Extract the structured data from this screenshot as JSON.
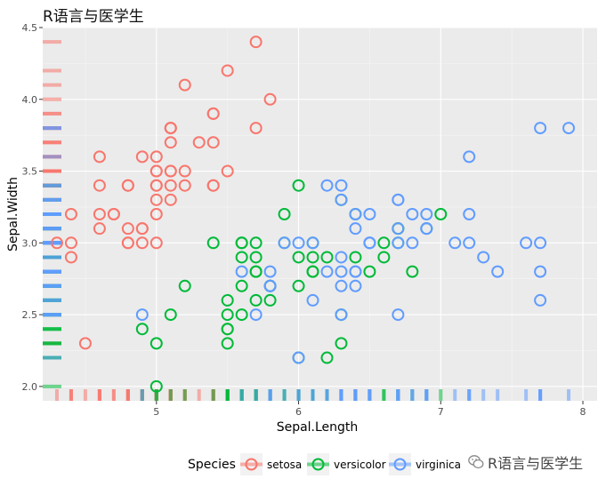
{
  "title": "R语言与医学生",
  "watermark": "R语言与医学生",
  "chart_data": {
    "type": "scatter",
    "title": "R语言与医学生",
    "xlabel": "Sepal.Length",
    "ylabel": "Sepal.Width",
    "xlim": [
      4.2,
      8.1
    ],
    "ylim": [
      1.9,
      4.5
    ],
    "xticks": [
      5,
      6,
      7,
      8
    ],
    "yticks": [
      2.0,
      2.5,
      3.0,
      3.5,
      4.0,
      4.5
    ],
    "xtick_labels": [
      "5",
      "6",
      "7",
      "8"
    ],
    "ytick_labels": [
      "2.0",
      "2.5",
      "3.0",
      "3.5",
      "4.0",
      "4.5"
    ],
    "grid": true,
    "rug": true,
    "legend": {
      "title": "Species",
      "position": "bottom"
    },
    "series": [
      {
        "name": "setosa",
        "color": "#F8766D",
        "points": [
          [
            5.1,
            3.5
          ],
          [
            4.9,
            3.0
          ],
          [
            4.7,
            3.2
          ],
          [
            4.6,
            3.1
          ],
          [
            5.0,
            3.6
          ],
          [
            5.4,
            3.9
          ],
          [
            4.6,
            3.4
          ],
          [
            5.0,
            3.4
          ],
          [
            4.4,
            2.9
          ],
          [
            4.9,
            3.1
          ],
          [
            5.4,
            3.7
          ],
          [
            4.8,
            3.4
          ],
          [
            4.8,
            3.0
          ],
          [
            4.3,
            3.0
          ],
          [
            5.8,
            4.0
          ],
          [
            5.7,
            4.4
          ],
          [
            5.4,
            3.9
          ],
          [
            5.1,
            3.5
          ],
          [
            5.7,
            3.8
          ],
          [
            5.1,
            3.8
          ],
          [
            5.4,
            3.4
          ],
          [
            5.1,
            3.7
          ],
          [
            4.6,
            3.6
          ],
          [
            5.1,
            3.3
          ],
          [
            4.8,
            3.4
          ],
          [
            5.0,
            3.0
          ],
          [
            5.0,
            3.4
          ],
          [
            5.2,
            3.5
          ],
          [
            5.2,
            3.4
          ],
          [
            4.7,
            3.2
          ],
          [
            4.8,
            3.1
          ],
          [
            5.4,
            3.4
          ],
          [
            5.2,
            4.1
          ],
          [
            5.5,
            4.2
          ],
          [
            4.9,
            3.1
          ],
          [
            5.0,
            3.2
          ],
          [
            5.5,
            3.5
          ],
          [
            4.9,
            3.6
          ],
          [
            4.4,
            3.0
          ],
          [
            5.1,
            3.4
          ],
          [
            5.0,
            3.5
          ],
          [
            4.5,
            2.3
          ],
          [
            4.4,
            3.2
          ],
          [
            5.0,
            3.5
          ],
          [
            5.1,
            3.8
          ],
          [
            4.8,
            3.0
          ],
          [
            5.1,
            3.8
          ],
          [
            4.6,
            3.2
          ],
          [
            5.3,
            3.7
          ],
          [
            5.0,
            3.3
          ]
        ]
      },
      {
        "name": "versicolor",
        "color": "#00BA38",
        "points": [
          [
            7.0,
            3.2
          ],
          [
            6.4,
            3.2
          ],
          [
            6.9,
            3.1
          ],
          [
            5.5,
            2.3
          ],
          [
            6.5,
            2.8
          ],
          [
            5.7,
            2.8
          ],
          [
            6.3,
            3.3
          ],
          [
            4.9,
            2.4
          ],
          [
            6.6,
            2.9
          ],
          [
            5.2,
            2.7
          ],
          [
            5.0,
            2.0
          ],
          [
            5.9,
            3.0
          ],
          [
            6.0,
            2.2
          ],
          [
            6.1,
            2.9
          ],
          [
            5.6,
            2.9
          ],
          [
            6.7,
            3.1
          ],
          [
            5.6,
            3.0
          ],
          [
            5.8,
            2.7
          ],
          [
            6.2,
            2.2
          ],
          [
            5.6,
            2.5
          ],
          [
            5.9,
            3.2
          ],
          [
            6.1,
            2.8
          ],
          [
            6.3,
            2.5
          ],
          [
            6.1,
            2.8
          ],
          [
            6.4,
            2.9
          ],
          [
            6.6,
            3.0
          ],
          [
            6.8,
            2.8
          ],
          [
            6.7,
            3.0
          ],
          [
            6.0,
            2.9
          ],
          [
            5.7,
            2.6
          ],
          [
            5.5,
            2.4
          ],
          [
            5.5,
            2.4
          ],
          [
            5.8,
            2.7
          ],
          [
            6.0,
            2.7
          ],
          [
            5.4,
            3.0
          ],
          [
            6.0,
            3.4
          ],
          [
            6.7,
            3.1
          ],
          [
            6.3,
            2.3
          ],
          [
            5.6,
            3.0
          ],
          [
            5.5,
            2.5
          ],
          [
            5.5,
            2.6
          ],
          [
            6.1,
            3.0
          ],
          [
            5.8,
            2.6
          ],
          [
            5.0,
            2.3
          ],
          [
            5.6,
            2.7
          ],
          [
            5.7,
            3.0
          ],
          [
            5.7,
            2.9
          ],
          [
            6.2,
            2.9
          ],
          [
            5.1,
            2.5
          ],
          [
            5.7,
            2.8
          ]
        ]
      },
      {
        "name": "virginica",
        "color": "#619CFF",
        "points": [
          [
            6.3,
            3.3
          ],
          [
            5.8,
            2.7
          ],
          [
            7.1,
            3.0
          ],
          [
            6.3,
            2.9
          ],
          [
            6.5,
            3.0
          ],
          [
            7.6,
            3.0
          ],
          [
            4.9,
            2.5
          ],
          [
            7.3,
            2.9
          ],
          [
            6.7,
            2.5
          ],
          [
            7.2,
            3.6
          ],
          [
            6.5,
            3.2
          ],
          [
            6.4,
            2.7
          ],
          [
            6.8,
            3.0
          ],
          [
            5.7,
            2.5
          ],
          [
            5.8,
            2.8
          ],
          [
            6.4,
            3.2
          ],
          [
            6.5,
            3.0
          ],
          [
            7.7,
            3.8
          ],
          [
            7.7,
            2.6
          ],
          [
            6.0,
            2.2
          ],
          [
            6.9,
            3.2
          ],
          [
            5.6,
            2.8
          ],
          [
            7.7,
            2.8
          ],
          [
            6.3,
            2.7
          ],
          [
            6.7,
            3.3
          ],
          [
            7.2,
            3.2
          ],
          [
            6.2,
            2.8
          ],
          [
            6.1,
            3.0
          ],
          [
            6.4,
            2.8
          ],
          [
            7.2,
            3.0
          ],
          [
            7.4,
            2.8
          ],
          [
            7.9,
            3.8
          ],
          [
            6.4,
            2.8
          ],
          [
            6.3,
            2.8
          ],
          [
            6.1,
            2.6
          ],
          [
            7.7,
            3.0
          ],
          [
            6.3,
            3.4
          ],
          [
            6.4,
            3.1
          ],
          [
            6.0,
            3.0
          ],
          [
            6.9,
            3.1
          ],
          [
            6.7,
            3.1
          ],
          [
            6.9,
            3.1
          ],
          [
            5.8,
            2.7
          ],
          [
            6.8,
            3.2
          ],
          [
            6.7,
            3.3
          ],
          [
            6.7,
            3.0
          ],
          [
            6.3,
            2.5
          ],
          [
            6.5,
            3.0
          ],
          [
            6.2,
            3.4
          ],
          [
            5.9,
            3.0
          ]
        ]
      }
    ]
  }
}
